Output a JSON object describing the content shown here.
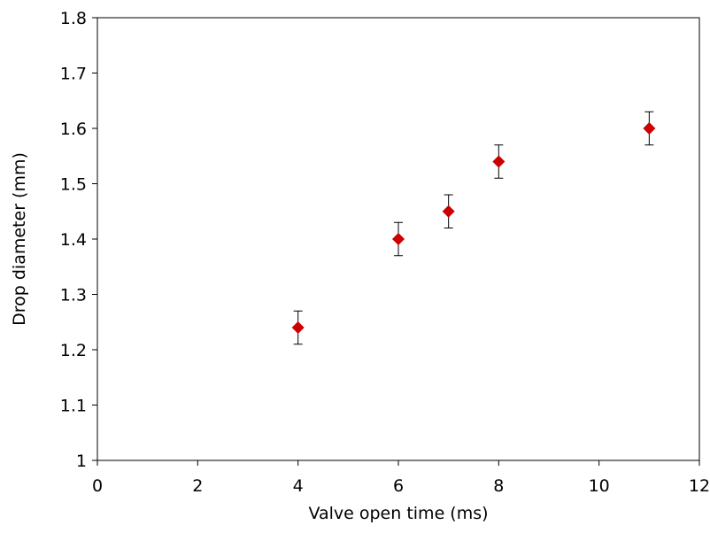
{
  "chart_data": {
    "type": "scatter",
    "title": "",
    "xlabel": "Valve open time  (ms)",
    "ylabel": "Drop diameter (mm)",
    "xlim": [
      0,
      12
    ],
    "ylim": [
      1,
      1.8
    ],
    "grid": false,
    "x_ticks": [
      0,
      2,
      4,
      6,
      8,
      10,
      12
    ],
    "y_ticks": [
      1,
      1.1,
      1.2,
      1.3,
      1.4,
      1.5,
      1.6,
      1.7,
      1.8
    ],
    "x_tick_labels": [
      "0",
      "2",
      "4",
      "6",
      "8",
      "10",
      "12"
    ],
    "y_tick_labels": [
      "1",
      "1.1",
      "1.2",
      "1.3",
      "1.4",
      "1.5",
      "1.6",
      "1.7",
      "1.8"
    ],
    "marker": "diamond",
    "marker_color": "#cc0000",
    "series": [
      {
        "x": [
          4,
          6,
          7,
          8,
          11
        ],
        "y": [
          1.24,
          1.4,
          1.45,
          1.54,
          1.6
        ],
        "error": [
          0.03,
          0.03,
          0.03,
          0.03,
          0.03
        ]
      }
    ]
  }
}
